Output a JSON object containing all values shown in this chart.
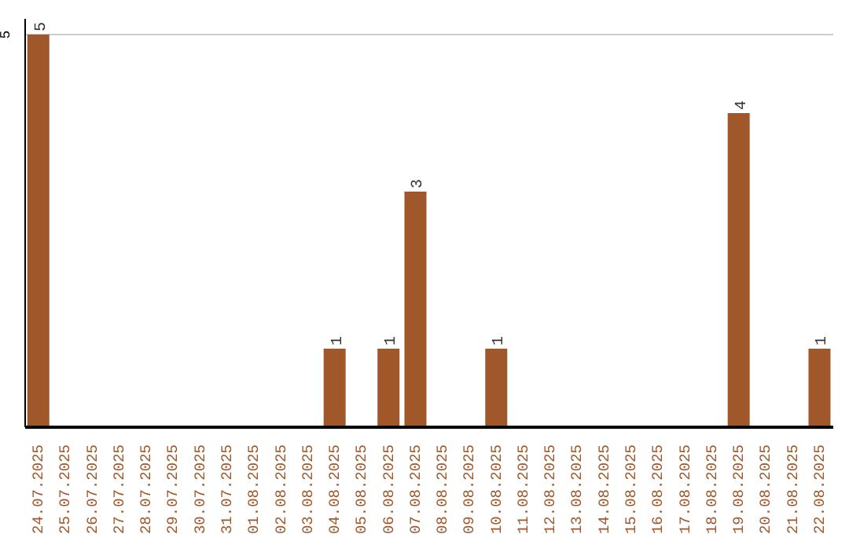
{
  "chart_data": {
    "type": "bar",
    "categories": [
      "24.07.2025",
      "25.07.2025",
      "26.07.2025",
      "27.07.2025",
      "28.07.2025",
      "29.07.2025",
      "30.07.2025",
      "31.07.2025",
      "01.08.2025",
      "02.08.2025",
      "03.08.2025",
      "04.08.2025",
      "05.08.2025",
      "06.08.2025",
      "07.08.2025",
      "08.08.2025",
      "09.08.2025",
      "10.08.2025",
      "11.08.2025",
      "12.08.2025",
      "13.08.2025",
      "14.08.2025",
      "15.08.2025",
      "16.08.2025",
      "17.08.2025",
      "18.08.2025",
      "19.08.2025",
      "20.08.2025",
      "21.08.2025",
      "22.08.2025"
    ],
    "values": [
      5,
      0,
      0,
      0,
      0,
      0,
      0,
      0,
      0,
      0,
      0,
      1,
      0,
      1,
      3,
      0,
      0,
      1,
      0,
      0,
      0,
      0,
      0,
      0,
      0,
      0,
      4,
      0,
      0,
      1
    ],
    "value_labels": [
      "5",
      null,
      null,
      null,
      null,
      null,
      null,
      null,
      null,
      null,
      null,
      "1",
      null,
      "1",
      "3",
      null,
      null,
      "1",
      null,
      null,
      null,
      null,
      null,
      null,
      null,
      null,
      "4",
      null,
      null,
      "1"
    ],
    "color": "#a0572a",
    "ylim": [
      0,
      5.2
    ],
    "yticks": [
      5
    ],
    "grid": "y"
  }
}
